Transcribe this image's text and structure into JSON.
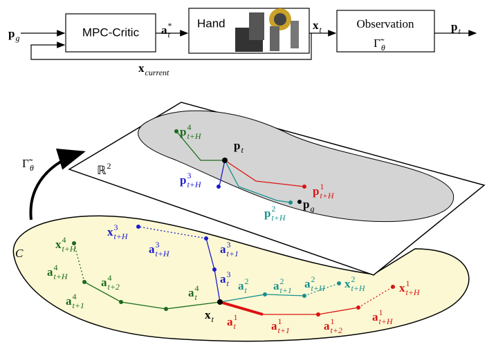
{
  "diagram": {
    "blocks": [
      "MPC-Critic",
      "Hand",
      "Observation"
    ],
    "labels": [
      {
        "base": "p",
        "sub": "g"
      },
      {
        "base": "a",
        "sup": "*",
        "sub": "t"
      },
      {
        "base": "x",
        "sub": "t"
      },
      {
        "base": "Γ̃",
        "sub": "θ"
      },
      {
        "base": "p",
        "sub": "t"
      },
      {
        "base": "x",
        "sub": "current"
      },
      {
        "base": "Γ̃",
        "sub": "θ"
      },
      {
        "base": "ℝ",
        "sup": "2"
      },
      {
        "base": "C"
      },
      {
        "base": "p",
        "sub": "t"
      },
      {
        "base": "p",
        "sub": "g"
      },
      {
        "base": "x",
        "sub": "t"
      },
      {
        "base": "p",
        "sup": "4",
        "sub": "t+H"
      },
      {
        "base": "p",
        "sup": "3",
        "sub": "t+H"
      },
      {
        "base": "p",
        "sup": "2",
        "sub": "t+H"
      },
      {
        "base": "p",
        "sup": "1",
        "sub": "t+H"
      },
      {
        "base": "x",
        "sup": "4",
        "sub": "t+H"
      },
      {
        "base": "a",
        "sup": "4",
        "sub": "t+H"
      },
      {
        "base": "a",
        "sup": "4",
        "sub": "t+2"
      },
      {
        "base": "a",
        "sup": "4",
        "sub": "t+1"
      },
      {
        "base": "a",
        "sup": "4",
        "sub": "t"
      },
      {
        "base": "x",
        "sup": "3",
        "sub": "t+H"
      },
      {
        "base": "a",
        "sup": "3",
        "sub": "t+H"
      },
      {
        "base": "a",
        "sup": "3",
        "sub": "t+1"
      },
      {
        "base": "a",
        "sup": "3",
        "sub": "t"
      },
      {
        "base": "a",
        "sup": "2",
        "sub": "t"
      },
      {
        "base": "a",
        "sup": "2",
        "sub": "t+1"
      },
      {
        "base": "a",
        "sup": "2",
        "sub": "t+H"
      },
      {
        "base": "x",
        "sup": "2",
        "sub": "t+H"
      },
      {
        "base": "a",
        "sup": "1",
        "sub": "t"
      },
      {
        "base": "a",
        "sup": "1",
        "sub": "t+1"
      },
      {
        "base": "a",
        "sup": "1",
        "sub": "t+2"
      },
      {
        "base": "a",
        "sup": "1",
        "sub": "t+H"
      },
      {
        "base": "x",
        "sup": "1",
        "sub": "t+H"
      }
    ]
  }
}
